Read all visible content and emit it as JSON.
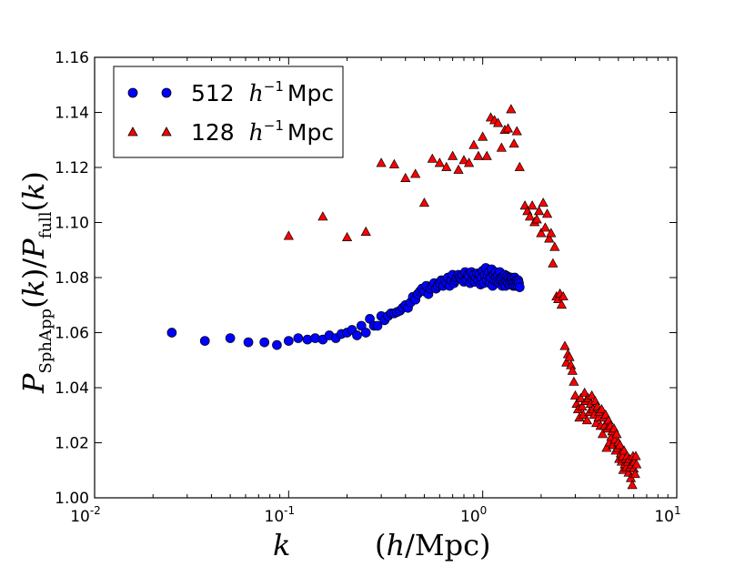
{
  "chart_data": {
    "type": "scatter",
    "title": "",
    "xlabel": "k   (h/Mpc)",
    "ylabel": "P_SphApp(k)/P_full(k)",
    "xscale": "log",
    "xlim": [
      0.01,
      10
    ],
    "ylim": [
      1.0,
      1.16
    ],
    "grid": false,
    "legend_position": "top-left",
    "x_ticks": [
      {
        "value": 0.01,
        "base": "10",
        "exp": "-2"
      },
      {
        "value": 0.1,
        "base": "10",
        "exp": "-1"
      },
      {
        "value": 1,
        "base": "10",
        "exp": "0"
      },
      {
        "value": 10,
        "base": "10",
        "exp": "1"
      }
    ],
    "y_ticks": [
      {
        "value": 1.0,
        "label": "1.00"
      },
      {
        "value": 1.02,
        "label": "1.02"
      },
      {
        "value": 1.04,
        "label": "1.04"
      },
      {
        "value": 1.06,
        "label": "1.06"
      },
      {
        "value": 1.08,
        "label": "1.08"
      },
      {
        "value": 1.1,
        "label": "1.10"
      },
      {
        "value": 1.12,
        "label": "1.12"
      },
      {
        "value": 1.14,
        "label": "1.14"
      },
      {
        "value": 1.16,
        "label": "1.16"
      }
    ],
    "series": [
      {
        "name": "512 h⁻¹ Mpc",
        "legend_number": "512",
        "legend_unit": "Mpc",
        "marker": "circle",
        "color": "#0000ff",
        "points": [
          [
            0.025,
            1.06
          ],
          [
            0.037,
            1.057
          ],
          [
            0.05,
            1.058
          ],
          [
            0.062,
            1.0565
          ],
          [
            0.075,
            1.0565
          ],
          [
            0.087,
            1.0555
          ],
          [
            0.1,
            1.057
          ],
          [
            0.112,
            1.058
          ],
          [
            0.125,
            1.0575
          ],
          [
            0.137,
            1.058
          ],
          [
            0.15,
            1.0575
          ],
          [
            0.162,
            1.059
          ],
          [
            0.175,
            1.058
          ],
          [
            0.187,
            1.0595
          ],
          [
            0.2,
            1.06
          ],
          [
            0.212,
            1.061
          ],
          [
            0.225,
            1.059
          ],
          [
            0.237,
            1.0625
          ],
          [
            0.25,
            1.06
          ],
          [
            0.262,
            1.065
          ],
          [
            0.275,
            1.0625
          ],
          [
            0.287,
            1.0625
          ],
          [
            0.3,
            1.066
          ],
          [
            0.312,
            1.0645
          ],
          [
            0.325,
            1.066
          ],
          [
            0.337,
            1.067
          ],
          [
            0.35,
            1.067
          ],
          [
            0.362,
            1.0675
          ],
          [
            0.375,
            1.068
          ],
          [
            0.387,
            1.069
          ],
          [
            0.4,
            1.07
          ],
          [
            0.412,
            1.069
          ],
          [
            0.425,
            1.071
          ],
          [
            0.437,
            1.073
          ],
          [
            0.45,
            1.072
          ],
          [
            0.462,
            1.074
          ],
          [
            0.475,
            1.075
          ],
          [
            0.487,
            1.076
          ],
          [
            0.5,
            1.075
          ],
          [
            0.512,
            1.077
          ],
          [
            0.525,
            1.074
          ],
          [
            0.537,
            1.076
          ],
          [
            0.55,
            1.077
          ],
          [
            0.562,
            1.078
          ],
          [
            0.575,
            1.076
          ],
          [
            0.587,
            1.077
          ],
          [
            0.6,
            1.078
          ],
          [
            0.612,
            1.079
          ],
          [
            0.625,
            1.077
          ],
          [
            0.637,
            1.079
          ],
          [
            0.65,
            1.078
          ],
          [
            0.662,
            1.08
          ],
          [
            0.675,
            1.077
          ],
          [
            0.687,
            1.079
          ],
          [
            0.7,
            1.081
          ],
          [
            0.712,
            1.078
          ],
          [
            0.725,
            1.079
          ],
          [
            0.737,
            1.08
          ],
          [
            0.75,
            1.081
          ],
          [
            0.762,
            1.08
          ],
          [
            0.775,
            1.0795
          ],
          [
            0.787,
            1.081
          ],
          [
            0.8,
            1.0785
          ],
          [
            0.812,
            1.082
          ],
          [
            0.825,
            1.079
          ],
          [
            0.837,
            1.081
          ],
          [
            0.85,
            1.0805
          ],
          [
            0.862,
            1.078
          ],
          [
            0.875,
            1.082
          ],
          [
            0.887,
            1.079
          ],
          [
            0.9,
            1.081
          ],
          [
            0.912,
            1.0785
          ],
          [
            0.925,
            1.08
          ],
          [
            0.937,
            1.0815
          ],
          [
            0.95,
            1.079
          ],
          [
            0.962,
            1.081
          ],
          [
            0.975,
            1.0775
          ],
          [
            0.987,
            1.08
          ],
          [
            1.0,
            1.0825
          ],
          [
            1.012,
            1.078
          ],
          [
            1.025,
            1.081
          ],
          [
            1.037,
            1.0835
          ],
          [
            1.05,
            1.079
          ],
          [
            1.062,
            1.081
          ],
          [
            1.075,
            1.082
          ],
          [
            1.087,
            1.078
          ],
          [
            1.1,
            1.08
          ],
          [
            1.112,
            1.083
          ],
          [
            1.125,
            1.077
          ],
          [
            1.137,
            1.081
          ],
          [
            1.15,
            1.079
          ],
          [
            1.162,
            1.082
          ],
          [
            1.175,
            1.08
          ],
          [
            1.187,
            1.0785
          ],
          [
            1.2,
            1.081
          ],
          [
            1.212,
            1.078
          ],
          [
            1.225,
            1.082
          ],
          [
            1.237,
            1.079
          ],
          [
            1.25,
            1.08
          ],
          [
            1.262,
            1.077
          ],
          [
            1.275,
            1.0805
          ],
          [
            1.287,
            1.078
          ],
          [
            1.3,
            1.081
          ],
          [
            1.312,
            1.077
          ],
          [
            1.325,
            1.079
          ],
          [
            1.337,
            1.0805
          ],
          [
            1.35,
            1.078
          ],
          [
            1.362,
            1.08
          ],
          [
            1.375,
            1.0775
          ],
          [
            1.387,
            1.079
          ],
          [
            1.4,
            1.08
          ],
          [
            1.412,
            1.078
          ],
          [
            1.425,
            1.0795
          ],
          [
            1.437,
            1.077
          ],
          [
            1.45,
            1.0785
          ],
          [
            1.462,
            1.08
          ],
          [
            1.475,
            1.077
          ],
          [
            1.487,
            1.079
          ],
          [
            1.5,
            1.0785
          ],
          [
            1.512,
            1.077
          ],
          [
            1.525,
            1.079
          ],
          [
            1.537,
            1.078
          ],
          [
            1.55,
            1.0765
          ]
        ]
      },
      {
        "name": "128 h⁻¹ Mpc",
        "legend_number": "128",
        "legend_unit": "Mpc",
        "marker": "triangle",
        "color": "#ff0000",
        "points": [
          [
            0.1,
            1.095
          ],
          [
            0.15,
            1.102
          ],
          [
            0.2,
            1.0945
          ],
          [
            0.25,
            1.0965
          ],
          [
            0.3,
            1.1215
          ],
          [
            0.35,
            1.121
          ],
          [
            0.4,
            1.116
          ],
          [
            0.45,
            1.1175
          ],
          [
            0.5,
            1.107
          ],
          [
            0.55,
            1.123
          ],
          [
            0.6,
            1.1215
          ],
          [
            0.65,
            1.12
          ],
          [
            0.7,
            1.124
          ],
          [
            0.75,
            1.119
          ],
          [
            0.8,
            1.1225
          ],
          [
            0.85,
            1.1215
          ],
          [
            0.9,
            1.128
          ],
          [
            0.95,
            1.124
          ],
          [
            1.0,
            1.131
          ],
          [
            1.05,
            1.124
          ],
          [
            1.1,
            1.138
          ],
          [
            1.15,
            1.137
          ],
          [
            1.2,
            1.136
          ],
          [
            1.25,
            1.127
          ],
          [
            1.3,
            1.1335
          ],
          [
            1.35,
            1.134
          ],
          [
            1.4,
            1.141
          ],
          [
            1.45,
            1.1285
          ],
          [
            1.5,
            1.133
          ],
          [
            1.55,
            1.12
          ],
          [
            1.65,
            1.106
          ],
          [
            1.7,
            1.104
          ],
          [
            1.75,
            1.102
          ],
          [
            1.8,
            1.106
          ],
          [
            1.85,
            1.1
          ],
          [
            1.9,
            1.101
          ],
          [
            1.95,
            1.104
          ],
          [
            2.0,
            1.096
          ],
          [
            2.05,
            1.107
          ],
          [
            2.1,
            1.098
          ],
          [
            2.15,
            1.103
          ],
          [
            2.2,
            1.094
          ],
          [
            2.25,
            1.096
          ],
          [
            2.3,
            1.085
          ],
          [
            2.35,
            1.091
          ],
          [
            2.4,
            1.073
          ],
          [
            2.45,
            1.072
          ],
          [
            2.5,
            1.074
          ],
          [
            2.55,
            1.07
          ],
          [
            2.6,
            1.073
          ],
          [
            2.65,
            1.055
          ],
          [
            2.7,
            1.049
          ],
          [
            2.75,
            1.052
          ],
          [
            2.8,
            1.051
          ],
          [
            2.85,
            1.048
          ],
          [
            2.9,
            1.046
          ],
          [
            2.95,
            1.042
          ],
          [
            3.0,
            1.037
          ],
          [
            3.05,
            1.034
          ],
          [
            3.1,
            1.032
          ],
          [
            3.15,
            1.029
          ],
          [
            3.2,
            1.036
          ],
          [
            3.25,
            1.033
          ],
          [
            3.3,
            1.03
          ],
          [
            3.35,
            1.038
          ],
          [
            3.4,
            1.035
          ],
          [
            3.45,
            1.028
          ],
          [
            3.5,
            1.036
          ],
          [
            3.55,
            1.031
          ],
          [
            3.6,
            1.034
          ],
          [
            3.65,
            1.037
          ],
          [
            3.7,
            1.032
          ],
          [
            3.75,
            1.03
          ],
          [
            3.8,
            1.035
          ],
          [
            3.85,
            1.027
          ],
          [
            3.9,
            1.033
          ],
          [
            3.95,
            1.029
          ],
          [
            4.0,
            1.031
          ],
          [
            4.05,
            1.026
          ],
          [
            4.1,
            1.032
          ],
          [
            4.15,
            1.023
          ],
          [
            4.2,
            1.029
          ],
          [
            4.25,
            1.026
          ],
          [
            4.3,
            1.03
          ],
          [
            4.35,
            1.018
          ],
          [
            4.4,
            1.025
          ],
          [
            4.45,
            1.028
          ],
          [
            4.5,
            1.02
          ],
          [
            4.55,
            1.026
          ],
          [
            4.6,
            1.022
          ],
          [
            4.65,
            1.024
          ],
          [
            4.7,
            1.019
          ],
          [
            4.75,
            1.025
          ],
          [
            4.8,
            1.021
          ],
          [
            4.85,
            1.017
          ],
          [
            4.9,
            1.023
          ],
          [
            4.95,
            1.018
          ],
          [
            5.0,
            1.02
          ],
          [
            5.05,
            1.014
          ],
          [
            5.1,
            1.019
          ],
          [
            5.15,
            1.016
          ],
          [
            5.2,
            1.013
          ],
          [
            5.25,
            1.015
          ],
          [
            5.3,
            1.01
          ],
          [
            5.35,
            1.017
          ],
          [
            5.4,
            1.012
          ],
          [
            5.45,
            1.014
          ],
          [
            5.5,
            1.011
          ],
          [
            5.55,
            1.015
          ],
          [
            5.6,
            1.013
          ],
          [
            5.65,
            1.009
          ],
          [
            5.7,
            1.014
          ],
          [
            5.75,
            1.011
          ],
          [
            5.8,
            1.007
          ],
          [
            5.85,
            1.012
          ],
          [
            5.9,
            1.0045
          ],
          [
            5.95,
            1.015
          ],
          [
            6.0,
            1.0105
          ],
          [
            6.05,
            1.013
          ],
          [
            6.1,
            1.0085
          ],
          [
            6.15,
            1.015
          ],
          [
            6.2,
            1.012
          ]
        ]
      }
    ]
  }
}
